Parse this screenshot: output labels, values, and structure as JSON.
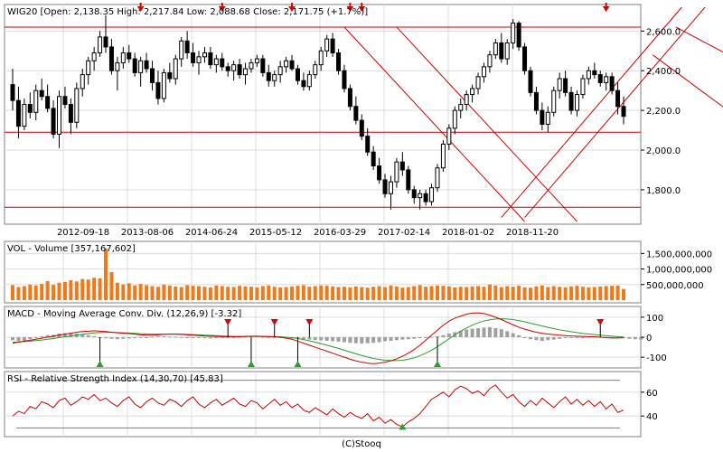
{
  "main": {
    "header": {
      "symbol": "WIG20",
      "open": "2,138.35",
      "high": "2,217.84",
      "low": "2,088.68",
      "close": "2,171.75",
      "change": "+1.7%"
    },
    "header_labels": {
      "open": "Open:",
      "high": "High:",
      "low": "Low:",
      "close": "Close:"
    },
    "y_ticks": [
      "2,600.0",
      "2,400.0",
      "2,200.0",
      "2,000.0",
      "1,800.0"
    ],
    "x_ticks": [
      "2012-09-18",
      "2013-08-06",
      "2014-06-24",
      "2015-05-12",
      "2016-03-29",
      "2017-02-14",
      "2018-01-02",
      "2018-11-20"
    ]
  },
  "volume": {
    "title": "VOL - Volume [357,167,602]",
    "y_ticks": [
      "1,500,000,000",
      "1,000,000,000",
      "500,000,000"
    ]
  },
  "macd": {
    "title": "MACD - Moving Average Conv. Div. (12,26,9) [-3.32]",
    "y_ticks": [
      "100",
      "0",
      "-100"
    ]
  },
  "rsi": {
    "title": "RSI - Relative Strength Index (14,30,70) [45.83]",
    "y_ticks": [
      "60",
      "40"
    ]
  },
  "footer": "(C)Stooq",
  "chart_data": [
    {
      "type": "candlestick",
      "series_name": "WIG20",
      "ylim": [
        1640,
        2720
      ],
      "y_ticks": [
        2600,
        2400,
        2200,
        2000,
        1800
      ],
      "horizontal_lines": [
        2620,
        2090,
        1712
      ],
      "candles": [
        [
          2330,
          2410,
          2200,
          2250
        ],
        [
          2250,
          2320,
          2060,
          2120
        ],
        [
          2120,
          2260,
          2100,
          2230
        ],
        [
          2230,
          2290,
          2160,
          2190
        ],
        [
          2190,
          2330,
          2150,
          2300
        ],
        [
          2300,
          2360,
          2250,
          2270
        ],
        [
          2270,
          2330,
          2190,
          2210
        ],
        [
          2210,
          2250,
          2060,
          2080
        ],
        [
          2080,
          2300,
          2010,
          2270
        ],
        [
          2270,
          2320,
          2210,
          2230
        ],
        [
          2230,
          2260,
          2080,
          2140
        ],
        [
          2140,
          2340,
          2110,
          2310
        ],
        [
          2310,
          2410,
          2270,
          2380
        ],
        [
          2380,
          2470,
          2330,
          2450
        ],
        [
          2450,
          2520,
          2400,
          2490
        ],
        [
          2490,
          2600,
          2470,
          2570
        ],
        [
          2570,
          2680,
          2490,
          2520
        ],
        [
          2520,
          2560,
          2380,
          2400
        ],
        [
          2400,
          2470,
          2300,
          2440
        ],
        [
          2440,
          2520,
          2410,
          2490
        ],
        [
          2490,
          2530,
          2440,
          2460
        ],
        [
          2460,
          2490,
          2370,
          2390
        ],
        [
          2390,
          2470,
          2320,
          2450
        ],
        [
          2450,
          2490,
          2390,
          2410
        ],
        [
          2410,
          2450,
          2300,
          2340
        ],
        [
          2340,
          2400,
          2230,
          2260
        ],
        [
          2260,
          2410,
          2240,
          2390
        ],
        [
          2390,
          2440,
          2340,
          2360
        ],
        [
          2360,
          2480,
          2330,
          2460
        ],
        [
          2460,
          2570,
          2420,
          2550
        ],
        [
          2550,
          2600,
          2460,
          2490
        ],
        [
          2490,
          2540,
          2420,
          2440
        ],
        [
          2440,
          2500,
          2380,
          2470
        ],
        [
          2470,
          2520,
          2440,
          2490
        ],
        [
          2490,
          2520,
          2410,
          2430
        ],
        [
          2430,
          2480,
          2390,
          2460
        ],
        [
          2460,
          2490,
          2400,
          2420
        ],
        [
          2420,
          2440,
          2370,
          2400
        ],
        [
          2400,
          2450,
          2350,
          2430
        ],
        [
          2430,
          2460,
          2360,
          2380
        ],
        [
          2380,
          2440,
          2330,
          2410
        ],
        [
          2410,
          2460,
          2390,
          2440
        ],
        [
          2440,
          2480,
          2420,
          2460
        ],
        [
          2460,
          2480,
          2370,
          2390
        ],
        [
          2390,
          2430,
          2320,
          2350
        ],
        [
          2350,
          2400,
          2320,
          2380
        ],
        [
          2380,
          2450,
          2340,
          2420
        ],
        [
          2420,
          2470,
          2390,
          2450
        ],
        [
          2450,
          2480,
          2400,
          2410
        ],
        [
          2410,
          2430,
          2330,
          2350
        ],
        [
          2350,
          2390,
          2300,
          2320
        ],
        [
          2320,
          2400,
          2300,
          2380
        ],
        [
          2380,
          2450,
          2360,
          2430
        ],
        [
          2430,
          2520,
          2400,
          2500
        ],
        [
          2500,
          2580,
          2470,
          2560
        ],
        [
          2560,
          2590,
          2470,
          2490
        ],
        [
          2490,
          2510,
          2380,
          2400
        ],
        [
          2400,
          2430,
          2290,
          2310
        ],
        [
          2310,
          2330,
          2200,
          2220
        ],
        [
          2220,
          2270,
          2130,
          2150
        ],
        [
          2150,
          2180,
          2050,
          2070
        ],
        [
          2070,
          2110,
          1970,
          1990
        ],
        [
          1990,
          2020,
          1900,
          1920
        ],
        [
          1920,
          1960,
          1830,
          1850
        ],
        [
          1850,
          1880,
          1760,
          1780
        ],
        [
          1780,
          1870,
          1700,
          1840
        ],
        [
          1840,
          1960,
          1810,
          1940
        ],
        [
          1940,
          1990,
          1870,
          1900
        ],
        [
          1900,
          1920,
          1780,
          1800
        ],
        [
          1800,
          1820,
          1730,
          1760
        ],
        [
          1760,
          1800,
          1700,
          1780
        ],
        [
          1780,
          1800,
          1720,
          1740
        ],
        [
          1740,
          1830,
          1720,
          1810
        ],
        [
          1810,
          1930,
          1790,
          1910
        ],
        [
          1910,
          2050,
          1890,
          2030
        ],
        [
          2030,
          2130,
          2000,
          2110
        ],
        [
          2110,
          2220,
          2080,
          2200
        ],
        [
          2200,
          2260,
          2160,
          2230
        ],
        [
          2230,
          2300,
          2200,
          2280
        ],
        [
          2280,
          2330,
          2240,
          2310
        ],
        [
          2310,
          2390,
          2280,
          2370
        ],
        [
          2370,
          2440,
          2340,
          2420
        ],
        [
          2420,
          2500,
          2390,
          2480
        ],
        [
          2480,
          2560,
          2460,
          2540
        ],
        [
          2540,
          2590,
          2440,
          2460
        ],
        [
          2460,
          2560,
          2430,
          2540
        ],
        [
          2540,
          2660,
          2510,
          2640
        ],
        [
          2640,
          2650,
          2500,
          2520
        ],
        [
          2520,
          2540,
          2380,
          2400
        ],
        [
          2400,
          2420,
          2270,
          2290
        ],
        [
          2290,
          2320,
          2180,
          2200
        ],
        [
          2200,
          2240,
          2100,
          2130
        ],
        [
          2130,
          2220,
          2090,
          2190
        ],
        [
          2190,
          2320,
          2170,
          2300
        ],
        [
          2300,
          2390,
          2260,
          2360
        ],
        [
          2360,
          2400,
          2270,
          2290
        ],
        [
          2290,
          2320,
          2180,
          2200
        ],
        [
          2200,
          2300,
          2170,
          2280
        ],
        [
          2280,
          2380,
          2260,
          2360
        ],
        [
          2360,
          2420,
          2330,
          2400
        ],
        [
          2400,
          2440,
          2360,
          2380
        ],
        [
          2380,
          2400,
          2320,
          2340
        ],
        [
          2340,
          2390,
          2300,
          2370
        ],
        [
          2370,
          2390,
          2280,
          2300
        ],
        [
          2300,
          2340,
          2180,
          2220
        ],
        [
          2220,
          2270,
          2130,
          2170
        ]
      ]
    },
    {
      "type": "bar",
      "series_name": "VOL",
      "ylim": [
        0,
        1800000000
      ],
      "values": [
        480000000,
        420000000,
        450000000,
        500000000,
        470000000,
        520000000,
        610000000,
        490000000,
        560000000,
        580000000,
        640000000,
        600000000,
        680000000,
        660000000,
        720000000,
        700000000,
        1650000000,
        900000000,
        560000000,
        500000000,
        540000000,
        470000000,
        520000000,
        480000000,
        450000000,
        430000000,
        500000000,
        470000000,
        440000000,
        420000000,
        480000000,
        460000000,
        450000000,
        430000000,
        410000000,
        470000000,
        450000000,
        430000000,
        420000000,
        460000000,
        440000000,
        430000000,
        410000000,
        450000000,
        470000000,
        430000000,
        410000000,
        420000000,
        440000000,
        460000000,
        480000000,
        430000000,
        450000000,
        470000000,
        460000000,
        440000000,
        420000000,
        430000000,
        410000000,
        440000000,
        420000000,
        400000000,
        430000000,
        450000000,
        420000000,
        470000000,
        440000000,
        400000000,
        420000000,
        450000000,
        480000000,
        430000000,
        450000000,
        470000000,
        460000000,
        440000000,
        410000000,
        430000000,
        420000000,
        440000000,
        450000000,
        430000000,
        500000000,
        470000000,
        420000000,
        450000000,
        430000000,
        460000000,
        410000000,
        400000000,
        440000000,
        470000000,
        420000000,
        450000000,
        430000000,
        410000000,
        440000000,
        460000000,
        430000000,
        410000000,
        420000000,
        440000000,
        450000000,
        460000000,
        470000000,
        360000000
      ]
    },
    {
      "type": "line",
      "series_name": "MACD",
      "ylim": [
        -140,
        140
      ],
      "histogram": [
        -15,
        -20,
        -18,
        -10,
        0,
        5,
        10,
        12,
        18,
        20,
        22,
        18,
        15,
        10,
        5,
        0,
        -5,
        -8,
        -10,
        -8,
        -6,
        -5,
        -3,
        0,
        3,
        5,
        4,
        3,
        2,
        1,
        0,
        -2,
        -4,
        -5,
        -6,
        -5,
        -3,
        -2,
        0,
        2,
        4,
        5,
        4,
        3,
        1,
        -1,
        -3,
        -5,
        -7,
        -8,
        -10,
        -12,
        -14,
        -16,
        -18,
        -20,
        -22,
        -25,
        -28,
        -30,
        -32,
        -30,
        -28,
        -25,
        -20,
        -18,
        -15,
        -12,
        -10,
        -8,
        -5,
        -2,
        2,
        5,
        10,
        18,
        25,
        32,
        38,
        42,
        45,
        48,
        50,
        45,
        40,
        30,
        20,
        10,
        0,
        -10,
        -15,
        -18,
        -15,
        -12,
        -8,
        -5,
        -3,
        -1,
        0,
        2,
        3,
        2,
        1,
        -1,
        -3,
        -5,
        -8,
        -10,
        -12
      ],
      "macd": [
        -30,
        -25,
        -20,
        -15,
        -10,
        -5,
        0,
        5,
        10,
        15,
        20,
        25,
        28,
        30,
        32,
        30,
        28,
        25,
        22,
        20,
        18,
        15,
        12,
        10,
        10,
        12,
        14,
        15,
        15,
        14,
        12,
        10,
        8,
        6,
        5,
        4,
        3,
        2,
        2,
        3,
        4,
        5,
        5,
        4,
        3,
        2,
        0,
        -5,
        -10,
        -20,
        -30,
        -40,
        -50,
        -60,
        -70,
        -80,
        -90,
        -100,
        -110,
        -118,
        -125,
        -130,
        -132,
        -130,
        -125,
        -118,
        -108,
        -95,
        -80,
        -62,
        -40,
        -15,
        10,
        35,
        60,
        80,
        95,
        105,
        115,
        120,
        122,
        118,
        110,
        100,
        88,
        75,
        62,
        50,
        40,
        32,
        25,
        20,
        16,
        13,
        10,
        8,
        6,
        5,
        4,
        3,
        2,
        0,
        -2,
        -4,
        -4,
        -3
      ],
      "signal": [
        -25,
        -24,
        -22,
        -20,
        -17,
        -14,
        -10,
        -6,
        -2,
        2,
        6,
        10,
        14,
        18,
        21,
        23,
        24,
        24,
        23,
        22,
        21,
        19,
        17,
        16,
        15,
        15,
        15,
        15,
        15,
        15,
        14,
        13,
        12,
        10,
        9,
        8,
        6,
        5,
        4,
        4,
        4,
        4,
        4,
        4,
        4,
        3,
        2,
        0,
        -3,
        -7,
        -12,
        -18,
        -25,
        -32,
        -40,
        -48,
        -56,
        -65,
        -74,
        -83,
        -91,
        -99,
        -106,
        -111,
        -115,
        -117,
        -117,
        -115,
        -110,
        -103,
        -93,
        -80,
        -65,
        -47,
        -28,
        -8,
        12,
        30,
        46,
        60,
        72,
        81,
        87,
        91,
        92,
        91,
        88,
        83,
        77,
        70,
        63,
        56,
        49,
        43,
        37,
        32,
        27,
        23,
        19,
        16,
        13,
        10,
        8,
        5,
        3,
        1
      ]
    },
    {
      "type": "line",
      "series_name": "RSI",
      "ylim": [
        25,
        75
      ],
      "guides": [
        70,
        30
      ],
      "values": [
        40,
        44,
        42,
        48,
        46,
        52,
        50,
        47,
        53,
        55,
        49,
        52,
        56,
        54,
        58,
        53,
        55,
        51,
        48,
        53,
        56,
        50,
        47,
        52,
        55,
        51,
        49,
        54,
        52,
        48,
        53,
        56,
        50,
        47,
        51,
        54,
        49,
        52,
        55,
        50,
        48,
        53,
        51,
        46,
        50,
        54,
        49,
        52,
        47,
        50,
        45,
        43,
        47,
        44,
        41,
        46,
        42,
        39,
        43,
        40,
        38,
        42,
        36,
        39,
        34,
        37,
        33,
        31,
        35,
        38,
        42,
        48,
        54,
        57,
        60,
        56,
        62,
        65,
        63,
        59,
        61,
        57,
        63,
        66,
        60,
        55,
        58,
        52,
        48,
        53,
        49,
        55,
        51,
        47,
        52,
        56,
        50,
        54,
        49,
        53,
        48,
        52,
        46,
        50,
        43,
        45
      ]
    }
  ]
}
